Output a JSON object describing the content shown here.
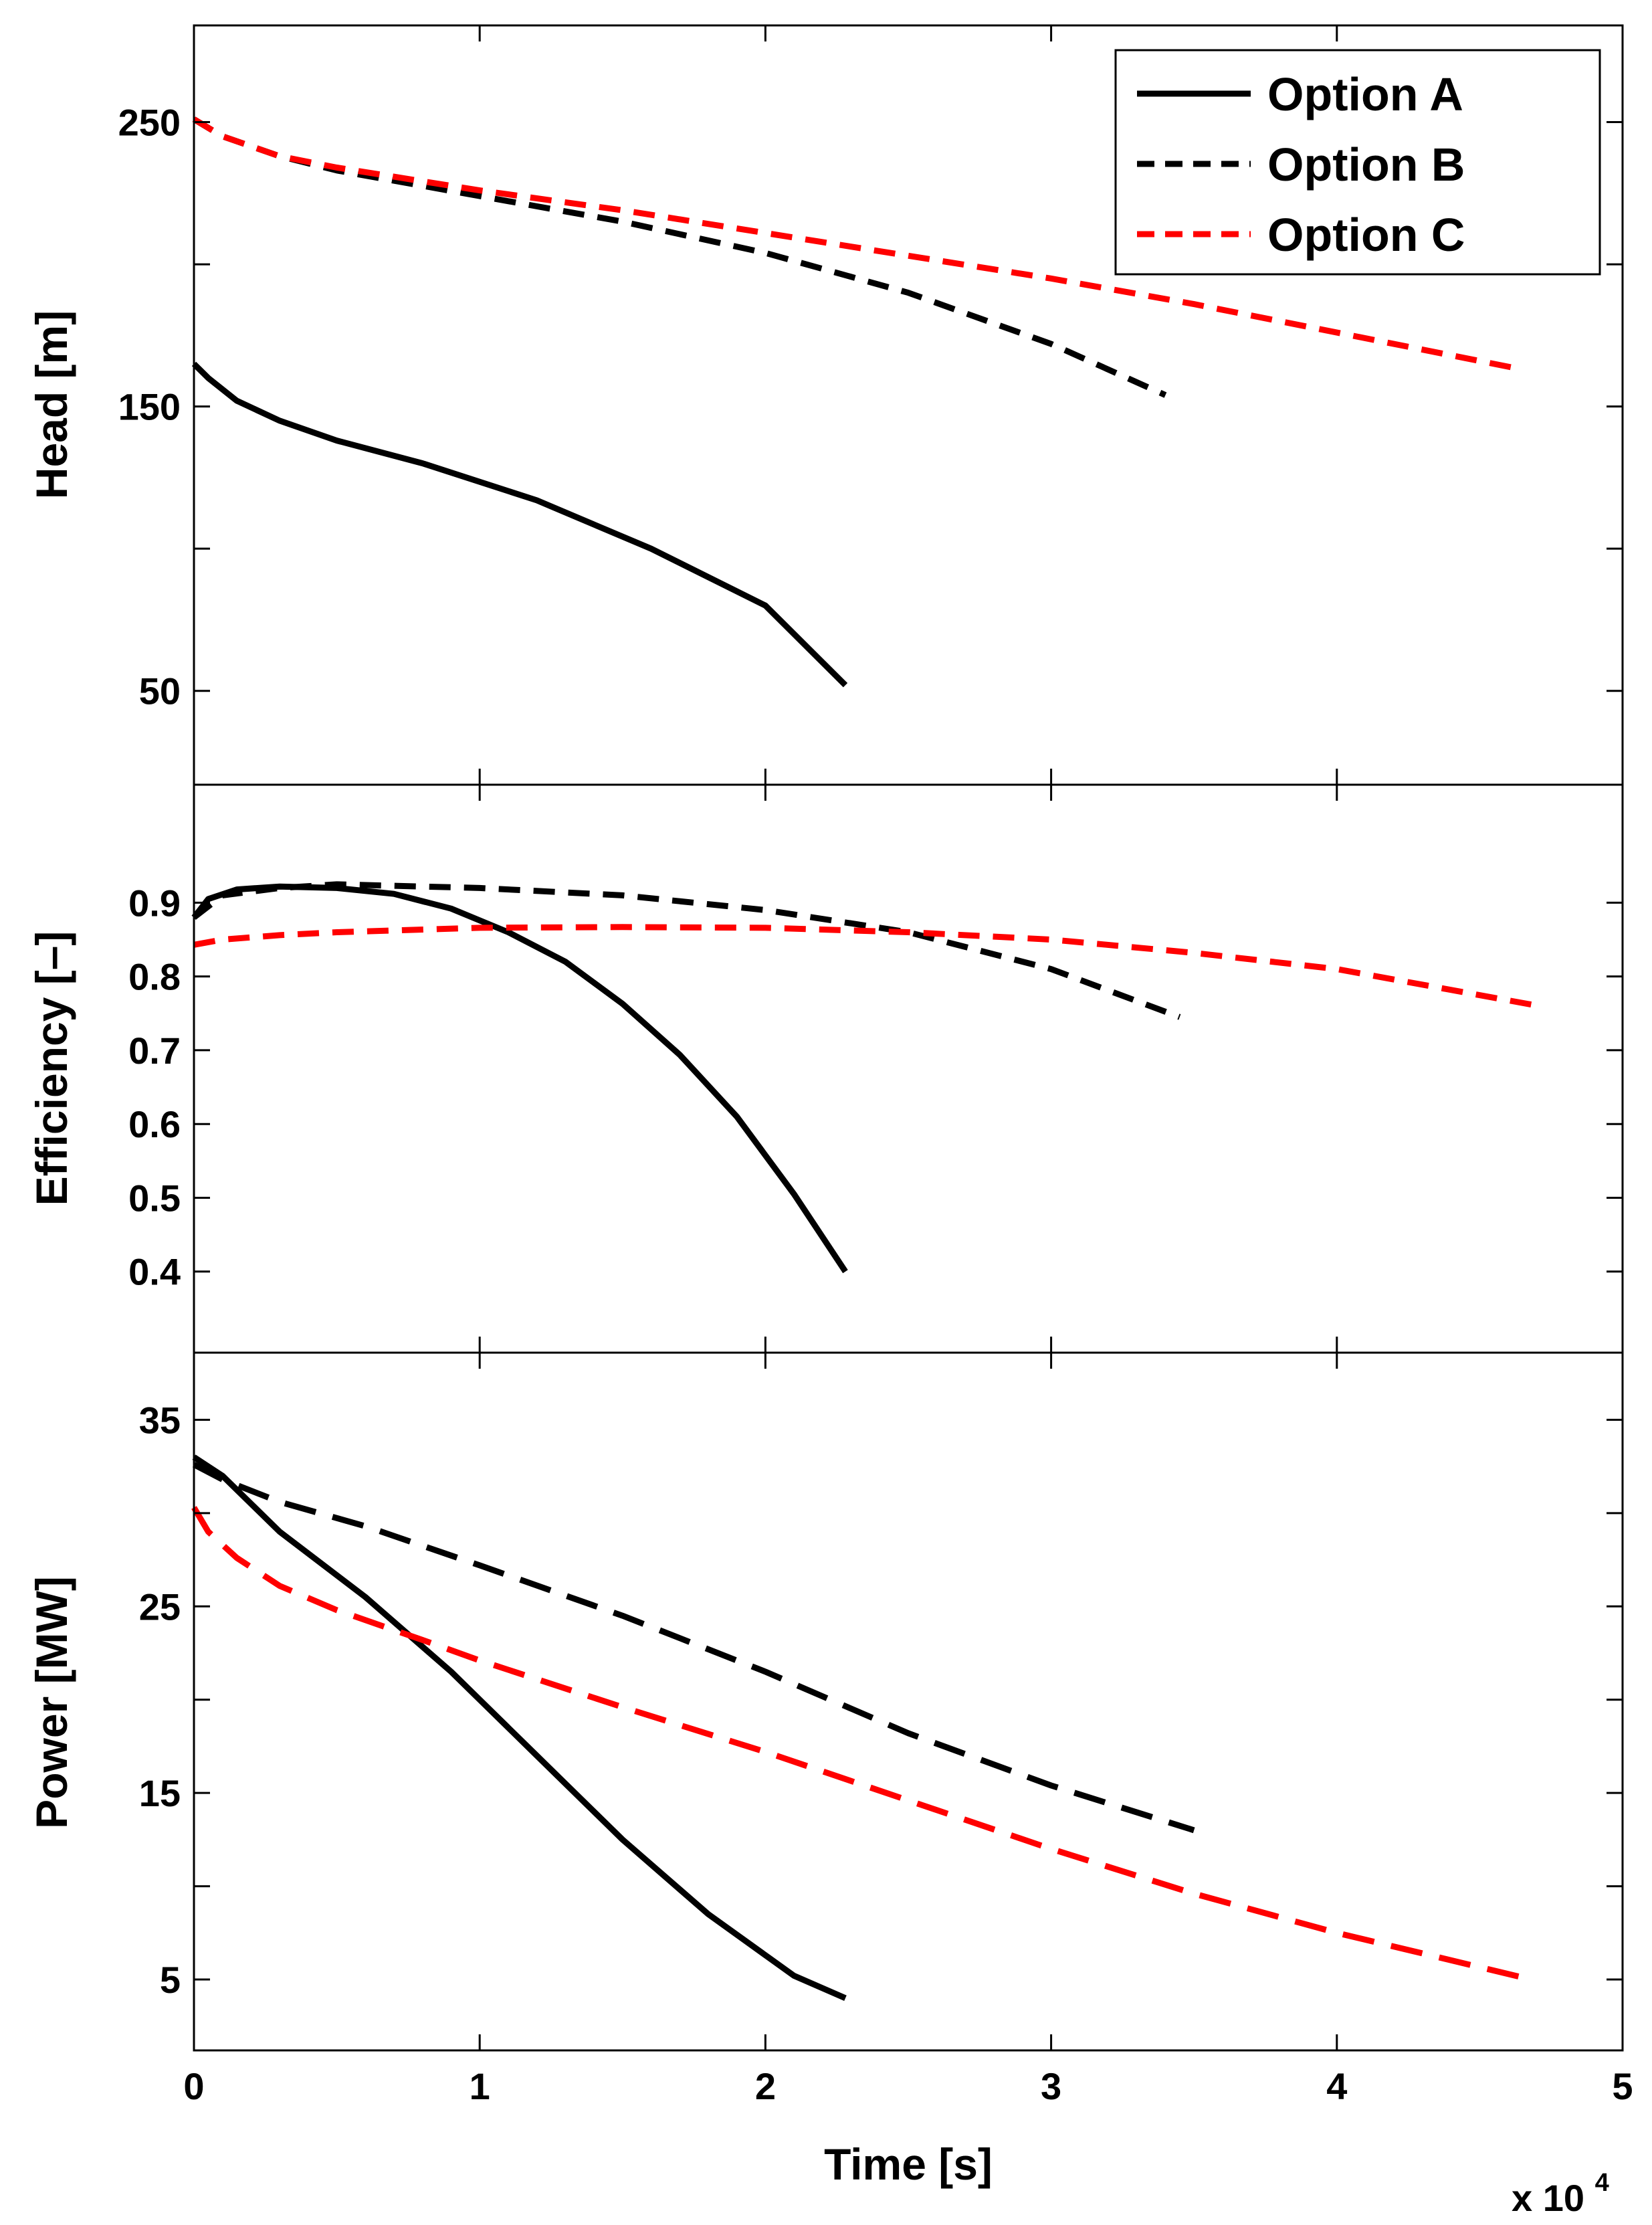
{
  "chart_data": {
    "type": "line",
    "shared_x": {
      "label": "Time [s]",
      "lim": [
        0,
        5
      ],
      "ticks": [
        0,
        1,
        2,
        3,
        4,
        5
      ],
      "tick_labels": [
        "0",
        "1",
        "2",
        "3",
        "4",
        "5"
      ],
      "multiplier_base": "x 10",
      "multiplier_exponent": "4"
    },
    "legend": {
      "location": "top-right",
      "entries": [
        {
          "name": "Option A",
          "color": "#000000",
          "style": "solid"
        },
        {
          "name": "Option B",
          "color": "#000000",
          "style": "dashed"
        },
        {
          "name": "Option C",
          "color": "#ff0000",
          "style": "dashed"
        }
      ]
    },
    "panels": [
      {
        "id": "head",
        "ylabel": "Head [m]",
        "ylim": [
          17,
          284
        ],
        "yticks": [
          50,
          100,
          150,
          200,
          250
        ],
        "ytick_labels": [
          "50",
          "",
          "150",
          "",
          "250"
        ],
        "series": [
          {
            "name": "Option A",
            "color": "#000000",
            "style": "solid",
            "x": [
              0,
              0.05,
              0.15,
              0.3,
              0.5,
              0.8,
              1.2,
              1.6,
              2.0,
              2.28
            ],
            "y": [
              165,
              160,
              152,
              145,
              138,
              130,
              117,
              100,
              80,
              52
            ]
          },
          {
            "name": "Option B",
            "color": "#000000",
            "style": "dashed",
            "x": [
              0,
              0.1,
              0.3,
              0.5,
              1.0,
              1.5,
              2.0,
              2.5,
              3.0,
              3.4
            ],
            "y": [
              251,
              245,
              238,
              233,
              224,
              215,
              204,
              190,
              172,
              154
            ]
          },
          {
            "name": "Option C",
            "color": "#ff0000",
            "style": "dashed",
            "x": [
              0,
              0.1,
              0.3,
              0.5,
              1.0,
              1.5,
              2.0,
              2.5,
              3.0,
              3.5,
              4.0,
              4.65
            ],
            "y": [
              251,
              245,
              238,
              234,
              226,
              219,
              211,
              203,
              195,
              186,
              176,
              163
            ]
          }
        ]
      },
      {
        "id": "efficiency",
        "ylabel": "Efficiency [–]",
        "ylim": [
          0.29,
          1.06
        ],
        "yticks": [
          0.4,
          0.5,
          0.6,
          0.7,
          0.8,
          0.9
        ],
        "ytick_labels": [
          "0.4",
          "0.5",
          "0.6",
          "0.7",
          "0.8",
          "0.9"
        ],
        "series": [
          {
            "name": "Option A",
            "color": "#000000",
            "style": "solid",
            "x": [
              0,
              0.05,
              0.15,
              0.3,
              0.5,
              0.7,
              0.9,
              1.1,
              1.3,
              1.5,
              1.7,
              1.9,
              2.1,
              2.28
            ],
            "y": [
              0.88,
              0.905,
              0.918,
              0.922,
              0.92,
              0.912,
              0.892,
              0.86,
              0.82,
              0.763,
              0.694,
              0.61,
              0.505,
              0.4
            ]
          },
          {
            "name": "Option B",
            "color": "#000000",
            "style": "dashed",
            "x": [
              0,
              0.1,
              0.3,
              0.5,
              1.0,
              1.5,
              2.0,
              2.5,
              3.0,
              3.45
            ],
            "y": [
              0.88,
              0.91,
              0.92,
              0.925,
              0.92,
              0.91,
              0.89,
              0.86,
              0.81,
              0.745
            ]
          },
          {
            "name": "Option C",
            "color": "#ff0000",
            "style": "dashed",
            "x": [
              0,
              0.1,
              0.3,
              0.5,
              1.0,
              1.5,
              2.0,
              2.5,
              3.0,
              3.5,
              4.0,
              4.68
            ],
            "y": [
              0.843,
              0.85,
              0.856,
              0.86,
              0.866,
              0.867,
              0.866,
              0.86,
              0.85,
              0.832,
              0.81,
              0.762
            ]
          }
        ]
      },
      {
        "id": "power",
        "ylabel": "Power [MW]",
        "ylim": [
          1.2,
          38.6
        ],
        "yticks": [
          5,
          10,
          15,
          20,
          25,
          30,
          35
        ],
        "ytick_labels": [
          "5",
          "",
          "15",
          "",
          "25",
          "",
          "35"
        ],
        "series": [
          {
            "name": "Option A",
            "color": "#000000",
            "style": "solid",
            "x": [
              0,
              0.1,
              0.3,
              0.6,
              0.9,
              1.2,
              1.5,
              1.8,
              2.1,
              2.28
            ],
            "y": [
              33,
              32,
              29,
              25.5,
              21.5,
              17,
              12.5,
              8.5,
              5.2,
              4.0
            ]
          },
          {
            "name": "Option B",
            "color": "#000000",
            "style": "longdash",
            "x": [
              0,
              0.1,
              0.3,
              0.6,
              1.0,
              1.5,
              2.0,
              2.5,
              3.0,
              3.5
            ],
            "y": [
              32.6,
              31.8,
              30.6,
              29.3,
              27.2,
              24.5,
              21.5,
              18.2,
              15.4,
              13.0
            ]
          },
          {
            "name": "Option C",
            "color": "#ff0000",
            "style": "longdash",
            "x": [
              0,
              0.05,
              0.15,
              0.3,
              0.5,
              0.8,
              1.0,
              1.5,
              2.0,
              2.5,
              3.0,
              3.5,
              4.0,
              4.68
            ],
            "y": [
              30.3,
              29.0,
              27.6,
              26.1,
              24.8,
              23.2,
              22.1,
              19.6,
              17.2,
              14.6,
              12.0,
              9.6,
              7.5,
              5.0
            ]
          }
        ]
      }
    ]
  }
}
